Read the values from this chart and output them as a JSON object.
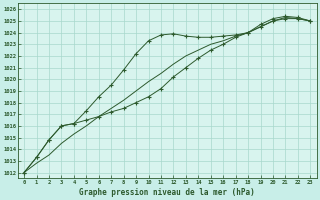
{
  "title": "Graphe pression niveau de la mer (hPa)",
  "bg_color": "#c8eee8",
  "plot_bg": "#d8f4ee",
  "grid_color": "#a8d8cc",
  "line_color": "#2d5a2d",
  "spine_color": "#2d5a2d",
  "xlim": [
    -0.5,
    23.5
  ],
  "ylim": [
    1011.5,
    1026.5
  ],
  "yticks": [
    1012,
    1013,
    1014,
    1015,
    1016,
    1017,
    1018,
    1019,
    1020,
    1021,
    1022,
    1023,
    1024,
    1025,
    1026
  ],
  "xticks": [
    0,
    1,
    2,
    3,
    4,
    5,
    6,
    7,
    8,
    9,
    10,
    11,
    12,
    13,
    14,
    15,
    16,
    17,
    18,
    19,
    20,
    21,
    22,
    23
  ],
  "hours": [
    0,
    1,
    2,
    3,
    4,
    5,
    6,
    7,
    8,
    9,
    10,
    11,
    12,
    13,
    14,
    15,
    16,
    17,
    18,
    19,
    20,
    21,
    22,
    23
  ],
  "line1_with_markers": [
    1012.0,
    1013.3,
    1014.8,
    1016.0,
    1016.2,
    1017.3,
    1018.5,
    1019.5,
    1020.8,
    1022.2,
    1023.3,
    1023.8,
    1023.9,
    1023.7,
    1023.6,
    1023.6,
    1023.7,
    1023.8,
    1024.0,
    1024.7,
    1025.2,
    1025.4,
    1025.3,
    1025.0
  ],
  "line2_no_markers": [
    1012.0,
    1012.8,
    1013.5,
    1014.5,
    1015.3,
    1016.0,
    1016.8,
    1017.5,
    1018.2,
    1019.0,
    1019.8,
    1020.5,
    1021.3,
    1022.0,
    1022.5,
    1023.0,
    1023.3,
    1023.7,
    1024.0,
    1024.5,
    1025.0,
    1025.3,
    1025.2,
    1025.0
  ],
  "line3_with_markers": [
    1012.0,
    1013.3,
    1014.8,
    1016.0,
    1016.2,
    1016.5,
    1016.8,
    1017.2,
    1017.5,
    1018.0,
    1018.5,
    1019.2,
    1020.2,
    1021.0,
    1021.8,
    1022.5,
    1023.0,
    1023.6,
    1024.0,
    1024.5,
    1025.0,
    1025.2,
    1025.2,
    1025.0
  ]
}
